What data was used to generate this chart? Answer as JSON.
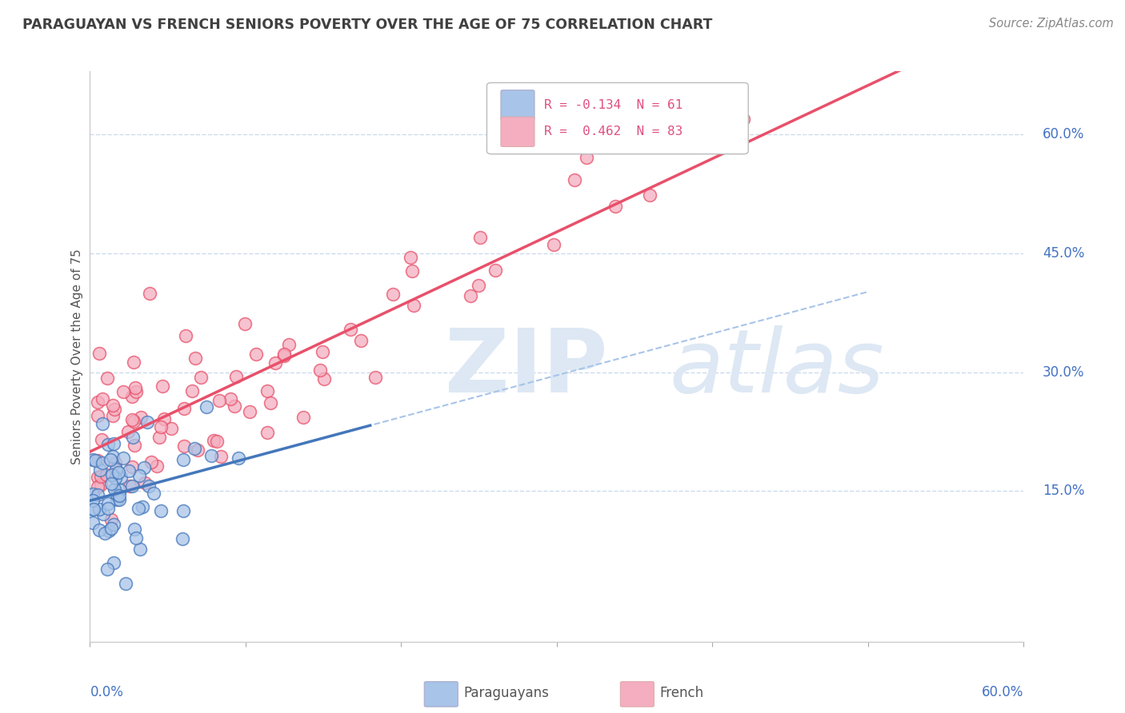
{
  "title": "PARAGUAYAN VS FRENCH SENIORS POVERTY OVER THE AGE OF 75 CORRELATION CHART",
  "source": "Source: ZipAtlas.com",
  "ylabel": "Seniors Poverty Over the Age of 75",
  "R_paraguayan": -0.134,
  "N_paraguayan": 61,
  "R_french": 0.462,
  "N_french": 83,
  "paraguayan_color": "#a8c4e8",
  "french_color": "#f4aec0",
  "paraguayan_line_color": "#4477bb",
  "french_line_color": "#e8506a",
  "dashed_line_color": "#a8c4e8",
  "title_color": "#404040",
  "source_color": "#888888",
  "axis_label_color": "#4472c4",
  "grid_color": "#c8d8ec",
  "watermark_color": "#dde8f4",
  "legend_text_color": "#4472c4",
  "legend_r_color": "#e05080",
  "ylabel_color": "#555555",
  "xlim": [
    0.0,
    0.6
  ],
  "ylim": [
    -0.04,
    0.68
  ],
  "ytick_values": [
    0.6,
    0.45,
    0.3,
    0.15
  ],
  "ytick_labels": [
    "60.0%",
    "45.0%",
    "30.0%",
    "15.0%"
  ],
  "xtick_labels": [
    "0.0%",
    "60.0%"
  ],
  "watermark_zip": "ZIP",
  "watermark_atlas": "atlas"
}
